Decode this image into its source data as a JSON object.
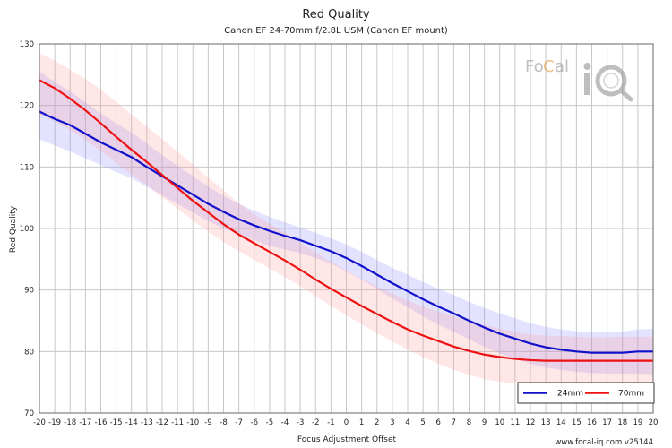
{
  "chart_data": {
    "type": "line",
    "title": "Red Quality",
    "subtitle": "Canon EF 24-70mm f/2.8L USM (Canon EF mount)",
    "xlabel": "Focus Adjustment Offset",
    "ylabel": "Red Quality",
    "xlim": [
      -20,
      20
    ],
    "ylim": [
      70,
      130
    ],
    "x_ticks": [
      -20,
      -19,
      -18,
      -17,
      -16,
      -15,
      -14,
      -13,
      -12,
      -11,
      -10,
      -9,
      -8,
      -7,
      -6,
      -5,
      -4,
      -3,
      -2,
      -1,
      0,
      1,
      2,
      3,
      4,
      5,
      6,
      7,
      8,
      9,
      10,
      11,
      12,
      13,
      14,
      15,
      16,
      17,
      18,
      19,
      20
    ],
    "y_ticks": [
      70,
      80,
      90,
      100,
      110,
      120,
      130
    ],
    "grid": true,
    "legend_position": "bottom-right",
    "x": [
      -20,
      -19,
      -18,
      -17,
      -16,
      -15,
      -14,
      -13,
      -12,
      -11,
      -10,
      -9,
      -8,
      -7,
      -6,
      -5,
      -4,
      -3,
      -2,
      -1,
      0,
      1,
      2,
      3,
      4,
      5,
      6,
      7,
      8,
      9,
      10,
      11,
      12,
      13,
      14,
      15,
      16,
      17,
      18,
      19,
      20
    ],
    "series": [
      {
        "name": "24mm",
        "color": "#1111cc",
        "band_color": "#8080ff",
        "values": [
          119.0,
          117.8,
          116.8,
          115.4,
          114.0,
          112.8,
          111.6,
          110.0,
          108.5,
          107.0,
          105.5,
          104.0,
          102.7,
          101.5,
          100.5,
          99.6,
          98.8,
          98.1,
          97.2,
          96.3,
          95.2,
          93.9,
          92.5,
          91.1,
          89.8,
          88.5,
          87.3,
          86.2,
          85.0,
          83.9,
          82.9,
          82.1,
          81.3,
          80.7,
          80.3,
          80.0,
          79.8,
          79.8,
          79.8,
          80.0,
          80.0
        ],
        "lower": [
          114.5,
          113.5,
          112.5,
          111.4,
          110.3,
          109.2,
          108.2,
          106.8,
          105.4,
          104.0,
          102.6,
          101.2,
          100.0,
          99.0,
          98.1,
          97.2,
          96.6,
          96.0,
          95.2,
          94.3,
          93.1,
          91.7,
          90.2,
          88.6,
          87.2,
          85.7,
          84.4,
          83.2,
          82.0,
          80.8,
          79.7,
          78.8,
          78.0,
          77.4,
          77.0,
          76.7,
          76.5,
          76.4,
          76.4,
          76.4,
          76.3
        ],
        "upper": [
          125.5,
          123.8,
          122.3,
          120.5,
          118.7,
          117.1,
          115.6,
          113.8,
          111.9,
          110.2,
          108.5,
          106.8,
          105.3,
          104.0,
          102.9,
          101.9,
          101.0,
          100.2,
          99.3,
          98.4,
          97.4,
          96.2,
          94.9,
          93.6,
          92.5,
          91.3,
          90.2,
          89.2,
          88.1,
          87.1,
          86.2,
          85.4,
          84.6,
          84.0,
          83.6,
          83.3,
          83.1,
          83.1,
          83.2,
          83.6,
          83.7
        ]
      },
      {
        "name": "70mm",
        "color": "#ee1111",
        "band_color": "#ff9090",
        "values": [
          124.1,
          122.8,
          121.1,
          119.2,
          117.1,
          114.9,
          112.8,
          110.8,
          108.7,
          106.6,
          104.5,
          102.6,
          100.7,
          99.0,
          97.6,
          96.2,
          94.8,
          93.3,
          91.7,
          90.2,
          88.8,
          87.4,
          86.1,
          84.8,
          83.6,
          82.6,
          81.7,
          80.8,
          80.1,
          79.5,
          79.1,
          78.8,
          78.6,
          78.5,
          78.5,
          78.5,
          78.5,
          78.5,
          78.5,
          78.5,
          78.5
        ],
        "lower": [
          118.5,
          117.4,
          116.0,
          114.4,
          112.6,
          110.7,
          108.8,
          107.0,
          105.1,
          103.2,
          101.3,
          99.5,
          97.8,
          96.3,
          94.9,
          93.5,
          92.1,
          90.6,
          89.0,
          87.4,
          85.9,
          84.4,
          83.0,
          81.6,
          80.3,
          79.1,
          78.0,
          77.0,
          76.2,
          75.5,
          75.1,
          74.8,
          74.7,
          74.7,
          74.6,
          74.6,
          74.6,
          74.6,
          74.6,
          74.6,
          74.6
        ],
        "upper": [
          128.5,
          127.3,
          125.8,
          124.3,
          122.6,
          120.6,
          118.5,
          116.6,
          114.5,
          112.5,
          110.4,
          108.3,
          106.2,
          104.1,
          102.3,
          100.8,
          99.3,
          97.7,
          96.1,
          94.6,
          93.2,
          91.8,
          90.6,
          89.4,
          88.3,
          87.3,
          86.5,
          85.7,
          85.0,
          84.3,
          83.7,
          83.2,
          82.8,
          82.6,
          82.5,
          82.4,
          82.3,
          82.3,
          82.4,
          82.4,
          82.4
        ]
      }
    ]
  },
  "logo": {
    "text": "FoCal iQ",
    "part1": "Fo",
    "part2": "C",
    "part3": "al",
    "part4": "iQ"
  },
  "footer": "www.focal-iq.com  v25144"
}
